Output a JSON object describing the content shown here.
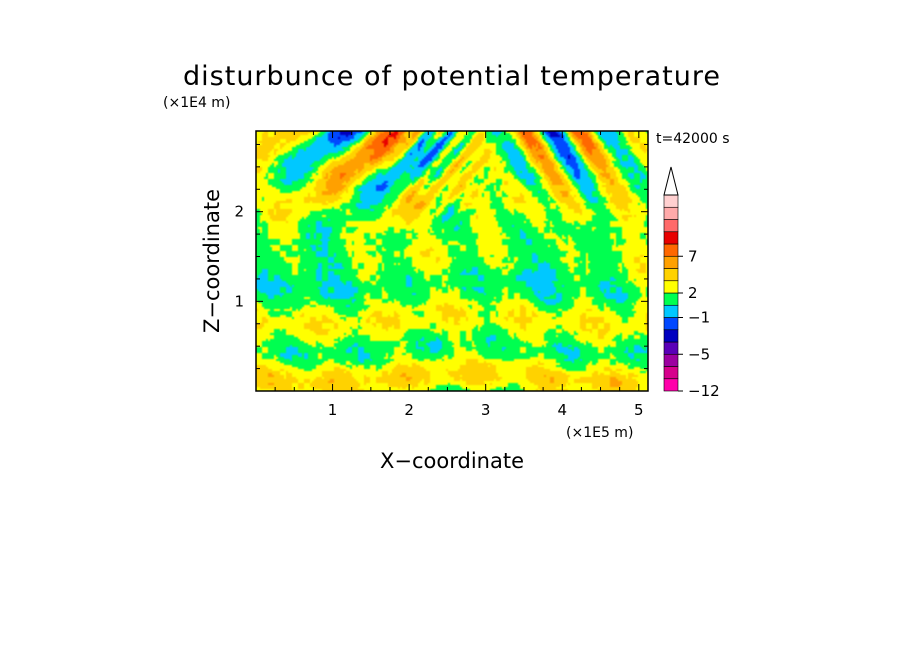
{
  "chart_data": {
    "type": "heatmap",
    "title": "disturbunce of potential temperature",
    "xlabel": "X−coordinate",
    "ylabel": "Z−coordinate",
    "x_unit": "(×1E5 m)",
    "y_unit": "(×1E4 m)",
    "time_label": "t=42000 s",
    "xlim": [
      0,
      5.12
    ],
    "ylim": [
      0,
      2.9
    ],
    "x_ticks": [
      1,
      2,
      3,
      4,
      5
    ],
    "y_ticks": [
      1,
      2
    ],
    "x_tick_labels": [
      "1",
      "2",
      "3",
      "4",
      "5"
    ],
    "y_tick_labels": [
      "1",
      "2"
    ],
    "colorbar": {
      "levels": [
        -12,
        -5,
        -1,
        2,
        7
      ],
      "level_labels": [
        "−12",
        "−5",
        "−1",
        "2",
        "7"
      ],
      "colors": [
        "#ff00aa",
        "#d6008c",
        "#9c00a0",
        "#5a00b8",
        "#0000c0",
        "#0048ff",
        "#00c8ff",
        "#00ff50",
        "#ffff00",
        "#ffd200",
        "#ffa000",
        "#ff6800",
        "#e80000",
        "#ff6a6a",
        "#ffaaaa",
        "#ffd0d0"
      ]
    }
  }
}
